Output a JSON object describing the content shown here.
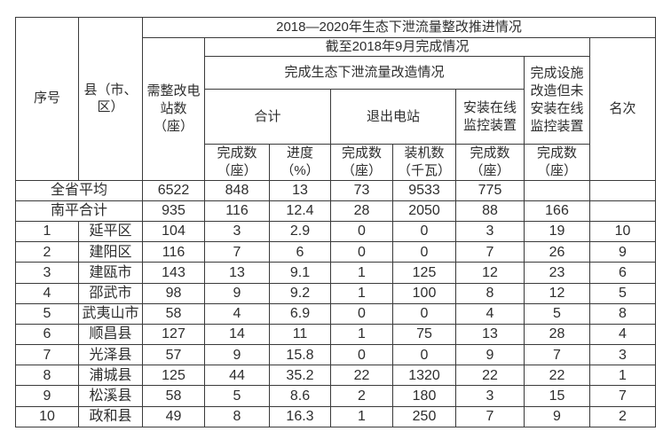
{
  "chart_data": {
    "type": "table",
    "title": "2018—2020年生态下泄流量整改推进情况",
    "header": {
      "seq": "序号",
      "county": "县（市、\n区）",
      "need_rectify": "需整改电\n站数\n（座）",
      "as_of_sep2018": "截至2018年9月完成情况",
      "flow_retrofit_group": "完成生态下泄流量改造情况",
      "total_group": "合计",
      "exit_station_group": "退出电站",
      "online_monitor_group": "安装在线\n监控装置",
      "facility_done_no_monitor": "完成设施\n改造但未\n安装在线\n监控装置",
      "rank": "名次",
      "sub_headers": [
        "完成数\n（座）",
        "进度\n（%）",
        "完成数\n（座）",
        "装机数\n（千瓦）",
        "完成数\n（座）",
        "完成数\n（座）"
      ]
    },
    "rows": [
      {
        "seq": "",
        "name": "全省平均",
        "merged": true,
        "values": [
          "6522",
          "848",
          "13",
          "73",
          "9533",
          "775",
          "",
          ""
        ]
      },
      {
        "seq": "",
        "name": "南平合计",
        "merged": true,
        "values": [
          "935",
          "116",
          "12.4",
          "28",
          "2050",
          "88",
          "166",
          ""
        ]
      },
      {
        "seq": "1",
        "name": "延平区",
        "merged": false,
        "values": [
          "104",
          "3",
          "2.9",
          "0",
          "0",
          "3",
          "19",
          "10"
        ]
      },
      {
        "seq": "2",
        "name": "建阳区",
        "merged": false,
        "values": [
          "116",
          "7",
          "6",
          "0",
          "0",
          "7",
          "26",
          "9"
        ]
      },
      {
        "seq": "3",
        "name": "建瓯市",
        "merged": false,
        "values": [
          "143",
          "13",
          "9.1",
          "1",
          "125",
          "12",
          "23",
          "6"
        ]
      },
      {
        "seq": "4",
        "name": "邵武市",
        "merged": false,
        "values": [
          "98",
          "9",
          "9.2",
          "1",
          "100",
          "8",
          "12",
          "5"
        ]
      },
      {
        "seq": "5",
        "name": "武夷山市",
        "merged": false,
        "values": [
          "58",
          "4",
          "6.9",
          "0",
          "0",
          "4",
          "5",
          "8"
        ]
      },
      {
        "seq": "6",
        "name": "顺昌县",
        "merged": false,
        "values": [
          "127",
          "14",
          "11",
          "1",
          "75",
          "13",
          "28",
          "4"
        ]
      },
      {
        "seq": "7",
        "name": "光泽县",
        "merged": false,
        "values": [
          "57",
          "9",
          "15.8",
          "0",
          "0",
          "9",
          "7",
          "3"
        ]
      },
      {
        "seq": "8",
        "name": "浦城县",
        "merged": false,
        "values": [
          "125",
          "44",
          "35.2",
          "22",
          "1320",
          "22",
          "22",
          "1"
        ]
      },
      {
        "seq": "9",
        "name": "松溪县",
        "merged": false,
        "values": [
          "58",
          "5",
          "8.6",
          "2",
          "180",
          "3",
          "15",
          "7"
        ]
      },
      {
        "seq": "10",
        "name": "政和县",
        "merged": false,
        "values": [
          "49",
          "8",
          "16.3",
          "1",
          "250",
          "7",
          "9",
          "2"
        ]
      }
    ]
  }
}
